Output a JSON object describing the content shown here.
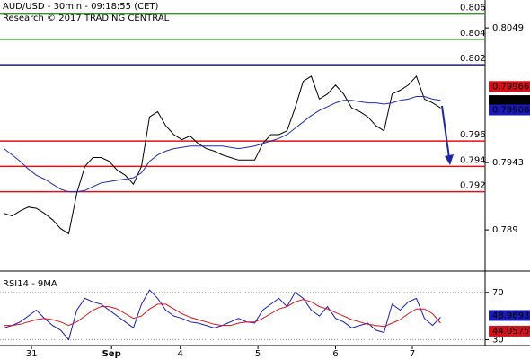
{
  "chart_data": [
    {
      "type": "line",
      "title": "AUD/USD - 30min - 09:18:55 (CET)",
      "subtitle": "Research © 2017 TRADING CENTRAL",
      "xlim": [
        -0.5,
        59.5
      ],
      "ylim": [
        0.7859,
        0.8071
      ],
      "yticks": [
        0.8049,
        0.7943,
        0.789
      ],
      "series": [
        {
          "name": "AUD/USD",
          "color": "#000000",
          "values": [
            0.7903,
            0.7901,
            0.7905,
            0.7908,
            0.7907,
            0.7903,
            0.7898,
            0.7891,
            0.7887,
            0.7919,
            0.794,
            0.7947,
            0.7947,
            0.7944,
            0.7937,
            0.7933,
            0.7926,
            0.794,
            0.7979,
            0.7983,
            0.7972,
            0.7965,
            0.7961,
            0.7964,
            0.7958,
            0.7954,
            0.7952,
            0.7949,
            0.7947,
            0.7945,
            0.7945,
            0.7945,
            0.7958,
            0.7965,
            0.7965,
            0.7968,
            0.7986,
            0.8007,
            0.8011,
            0.7993,
            0.7997,
            0.8004,
            0.7997,
            0.7986,
            0.7983,
            0.7979,
            0.7972,
            0.7968,
            0.7997,
            0.8,
            0.8004,
            0.8011,
            0.7993,
            0.799,
            0.7986
          ]
        },
        {
          "name": "MA",
          "color": "#1f2fb0",
          "values": [
            0.7954,
            0.7949,
            0.7944,
            0.7938,
            0.7933,
            0.793,
            0.7926,
            0.7922,
            0.792,
            0.792,
            0.7921,
            0.7924,
            0.7927,
            0.7928,
            0.7929,
            0.793,
            0.7931,
            0.7935,
            0.7944,
            0.7949,
            0.7952,
            0.7954,
            0.7955,
            0.7956,
            0.7956,
            0.7956,
            0.7956,
            0.7956,
            0.7955,
            0.7954,
            0.7955,
            0.7956,
            0.7958,
            0.796,
            0.7962,
            0.7965,
            0.797,
            0.7975,
            0.798,
            0.7984,
            0.7987,
            0.799,
            0.7992,
            0.7992,
            0.7991,
            0.799,
            0.799,
            0.7989,
            0.799,
            0.7992,
            0.7993,
            0.7995,
            0.7995,
            0.7993,
            0.7992
          ]
        }
      ],
      "levels": [
        {
          "value": 0.806,
          "color": "#2e9a1e"
        },
        {
          "value": 0.804,
          "color": "#2e9a1e"
        },
        {
          "value": 0.802,
          "color": "#1a1ab0"
        },
        {
          "value": 0.796,
          "color": "#e0101a"
        },
        {
          "value": 0.794,
          "color": "#e0101a"
        },
        {
          "value": 0.792,
          "color": "#e0101a"
        }
      ],
      "last_markers": [
        {
          "value": 0.79966,
          "color": "#d8101a"
        },
        {
          "value": 0.79918,
          "color": "#000000"
        },
        {
          "value": 0.79908,
          "color": "#1a1ab8"
        }
      ]
    },
    {
      "type": "line",
      "title": "RSI14 - 9MA",
      "xlim": [
        -0.5,
        59.5
      ],
      "ylim": [
        25,
        82
      ],
      "yticks": [
        70,
        30
      ],
      "xticks": [
        {
          "value": 3.4,
          "label": "31"
        },
        {
          "value": 13.3,
          "label": "Sep"
        },
        {
          "value": 21.8,
          "label": "4"
        },
        {
          "value": 31.4,
          "label": "5"
        },
        {
          "value": 41,
          "label": "6"
        },
        {
          "value": 50.5,
          "label": "7"
        }
      ],
      "series": [
        {
          "name": "RSI14",
          "color": "#1a1ab8",
          "values": [
            40,
            42,
            45,
            50,
            55,
            48,
            42,
            38,
            30,
            55,
            65,
            62,
            60,
            55,
            50,
            45,
            40,
            60,
            72,
            65,
            55,
            50,
            48,
            45,
            44,
            42,
            40,
            42,
            45,
            48,
            45,
            44,
            55,
            60,
            65,
            58,
            70,
            65,
            55,
            50,
            58,
            48,
            45,
            40,
            42,
            44,
            38,
            36,
            60,
            55,
            62,
            65,
            48,
            42,
            49
          ]
        },
        {
          "name": "9MA",
          "color": "#e0101a",
          "values": [
            42,
            42,
            43,
            45,
            47,
            48,
            47,
            45,
            42,
            45,
            50,
            55,
            58,
            58,
            56,
            52,
            48,
            50,
            56,
            60,
            60,
            56,
            52,
            49,
            47,
            45,
            43,
            42,
            42,
            44,
            45,
            45,
            48,
            52,
            56,
            58,
            62,
            64,
            62,
            58,
            56,
            53,
            50,
            47,
            45,
            43,
            42,
            41,
            44,
            47,
            52,
            56,
            56,
            52,
            44
          ]
        }
      ],
      "last_markers": [
        {
          "value": 48.9693,
          "color": "#1a1ab8"
        },
        {
          "value": 44.0575,
          "color": "#d8101a"
        }
      ]
    }
  ]
}
